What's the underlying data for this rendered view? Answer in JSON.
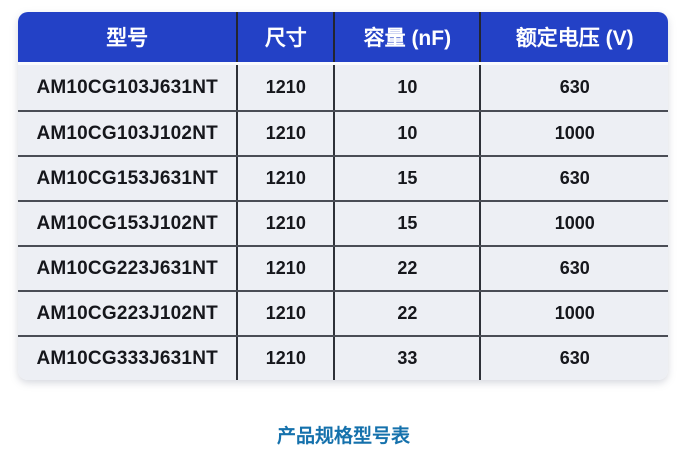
{
  "page": {
    "background": "#ffffff"
  },
  "colors": {
    "header_bg": "#2341c6",
    "header_text": "#ffffff",
    "row_bg": "#edeff4",
    "grid_line": "#3a3d46",
    "cell_text": "#16171c",
    "caption_text": "#1571ac"
  },
  "table": {
    "columns": [
      {
        "label": "型号"
      },
      {
        "label": "尺寸"
      },
      {
        "label": "容量 (nF)"
      },
      {
        "label": "额定电压 (V)"
      }
    ],
    "rows": [
      [
        "AM10CG103J631NT",
        "1210",
        "10",
        "630"
      ],
      [
        "AM10CG103J102NT",
        "1210",
        "10",
        "1000"
      ],
      [
        "AM10CG153J631NT",
        "1210",
        "15",
        "630"
      ],
      [
        "AM10CG153J102NT",
        "1210",
        "15",
        "1000"
      ],
      [
        "AM10CG223J631NT",
        "1210",
        "22",
        "630"
      ],
      [
        "AM10CG223J102NT",
        "1210",
        "22",
        "1000"
      ],
      [
        "AM10CG333J631NT",
        "1210",
        "33",
        "630"
      ]
    ]
  },
  "caption": {
    "text": "产品规格型号表"
  },
  "chart_data": {
    "type": "table",
    "title": "产品规格型号表",
    "columns": [
      "型号",
      "尺寸",
      "容量 (nF)",
      "额定电压 (V)"
    ],
    "rows": [
      [
        "AM10CG103J631NT",
        "1210",
        "10",
        "630"
      ],
      [
        "AM10CG103J102NT",
        "1210",
        "10",
        "1000"
      ],
      [
        "AM10CG153J631NT",
        "1210",
        "15",
        "630"
      ],
      [
        "AM10CG153J102NT",
        "1210",
        "15",
        "1000"
      ],
      [
        "AM10CG223J631NT",
        "1210",
        "22",
        "630"
      ],
      [
        "AM10CG223J102NT",
        "1210",
        "22",
        "1000"
      ],
      [
        "AM10CG333J631NT",
        "1210",
        "33",
        "630"
      ]
    ],
    "notes": "Capacitance values in nF: 10, 10, 15, 15, 22, 22, 33. Rated voltages in V alternate 630/1000. All sizes 1210."
  }
}
